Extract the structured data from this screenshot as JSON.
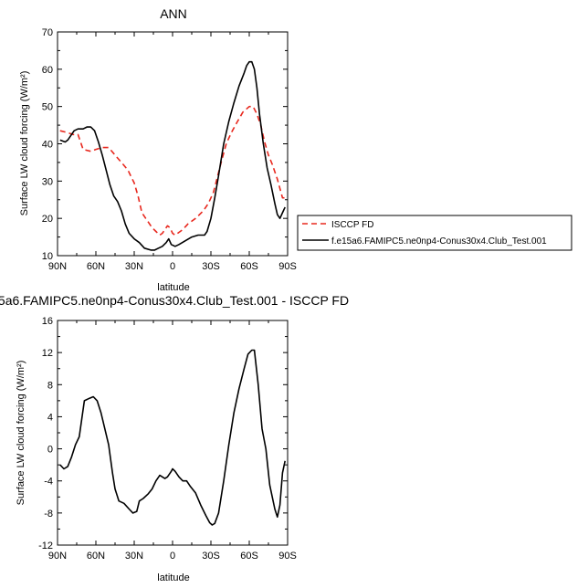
{
  "chart_data": [
    {
      "type": "line",
      "title": "ANN",
      "xlabel": "latitude",
      "ylabel": "Surface LW cloud forcing (W/m²)",
      "xlim": [
        90,
        -90
      ],
      "ylim": [
        10,
        70
      ],
      "x_ticks": [
        90,
        60,
        30,
        0,
        -30,
        -60,
        -90
      ],
      "x_tick_labels": [
        "90N",
        "60N",
        "30N",
        "0",
        "30S",
        "60S",
        "90S"
      ],
      "y_ticks": [
        10,
        20,
        30,
        40,
        50,
        60,
        70
      ],
      "y_tick_labels": [
        "10",
        "20",
        "30",
        "40",
        "50",
        "60",
        "70"
      ],
      "legend_position": "right",
      "series": [
        {
          "name": "ISCCP FD",
          "color": "#e8281e",
          "style": "dashed",
          "points": [
            [
              88,
              43.5
            ],
            [
              82,
              43
            ],
            [
              78,
              42.5
            ],
            [
              74,
              42.5
            ],
            [
              70,
              38.5
            ],
            [
              64,
              38
            ],
            [
              60,
              38.5
            ],
            [
              55,
              39
            ],
            [
              50,
              39
            ],
            [
              45,
              37
            ],
            [
              40,
              35
            ],
            [
              35,
              33
            ],
            [
              30,
              29.5
            ],
            [
              27,
              26
            ],
            [
              24,
              21.5
            ],
            [
              20,
              19.5
            ],
            [
              16,
              17.5
            ],
            [
              13,
              16.5
            ],
            [
              10,
              15.5
            ],
            [
              8,
              16
            ],
            [
              6,
              17
            ],
            [
              4,
              18
            ],
            [
              2,
              17.5
            ],
            [
              0,
              16
            ],
            [
              -2,
              15.5
            ],
            [
              -4,
              16
            ],
            [
              -8,
              17
            ],
            [
              -12,
              18.5
            ],
            [
              -18,
              20
            ],
            [
              -24,
              22
            ],
            [
              -28,
              24
            ],
            [
              -32,
              27
            ],
            [
              -35,
              31
            ],
            [
              -38,
              35
            ],
            [
              -42,
              40
            ],
            [
              -46,
              43
            ],
            [
              -50,
              45.5
            ],
            [
              -55,
              48.5
            ],
            [
              -60,
              50
            ],
            [
              -63,
              50
            ],
            [
              -66,
              48
            ],
            [
              -69,
              45
            ],
            [
              -72,
              40.5
            ],
            [
              -75,
              37
            ],
            [
              -78,
              34.5
            ],
            [
              -82,
              30.5
            ],
            [
              -86,
              25.5
            ],
            [
              -88,
              25.5
            ]
          ]
        },
        {
          "name": "f.e15a6.FAMIPC5.ne0np4-Conus30x4.Club_Test.001",
          "color": "#000000",
          "style": "solid",
          "points": [
            [
              88,
              41
            ],
            [
              84,
              40.5
            ],
            [
              82,
              41
            ],
            [
              80,
              42
            ],
            [
              77,
              43.5
            ],
            [
              74,
              44
            ],
            [
              70,
              44
            ],
            [
              67,
              44.5
            ],
            [
              64,
              44.5
            ],
            [
              61,
              43.5
            ],
            [
              58,
              40.5
            ],
            [
              55,
              37
            ],
            [
              52,
              33
            ],
            [
              49,
              29
            ],
            [
              46,
              26
            ],
            [
              43,
              24.5
            ],
            [
              40,
              22
            ],
            [
              37,
              18.5
            ],
            [
              34,
              16
            ],
            [
              30,
              14.5
            ],
            [
              26,
              13.5
            ],
            [
              22,
              12
            ],
            [
              17,
              11.5
            ],
            [
              14,
              11.5
            ],
            [
              11,
              12
            ],
            [
              8,
              12.5
            ],
            [
              5,
              13.5
            ],
            [
              3,
              14.5
            ],
            [
              1,
              13
            ],
            [
              -2,
              12.5
            ],
            [
              -5,
              13
            ],
            [
              -10,
              14
            ],
            [
              -15,
              15
            ],
            [
              -20,
              15.5
            ],
            [
              -25,
              15.5
            ],
            [
              -27,
              16.5
            ],
            [
              -30,
              20
            ],
            [
              -33,
              25.5
            ],
            [
              -36,
              31.5
            ],
            [
              -40,
              40
            ],
            [
              -44,
              46
            ],
            [
              -48,
              51
            ],
            [
              -52,
              55.5
            ],
            [
              -56,
              59
            ],
            [
              -58,
              61
            ],
            [
              -60,
              62
            ],
            [
              -62,
              62
            ],
            [
              -64,
              60
            ],
            [
              -66,
              55
            ],
            [
              -68,
              48
            ],
            [
              -71,
              40
            ],
            [
              -74,
              33.5
            ],
            [
              -77,
              29
            ],
            [
              -80,
              24
            ],
            [
              -82,
              21
            ],
            [
              -84,
              20
            ],
            [
              -86,
              21.5
            ],
            [
              -88,
              23
            ]
          ]
        }
      ]
    },
    {
      "type": "line",
      "title": "5a6.FAMIPC5.ne0np4-Conus30x4.Club_Test.001 - ISCCP FD",
      "xlabel": "latitude",
      "ylabel": "Surface LW cloud forcing (W/m²)",
      "xlim": [
        90,
        -90
      ],
      "ylim": [
        -12,
        16
      ],
      "x_ticks": [
        90,
        60,
        30,
        0,
        -30,
        -60,
        -90
      ],
      "x_tick_labels": [
        "90N",
        "60N",
        "30N",
        "0",
        "30S",
        "60S",
        "90S"
      ],
      "y_ticks": [
        -12,
        -8,
        -4,
        0,
        4,
        8,
        12,
        16
      ],
      "y_tick_labels": [
        "-12",
        "-8",
        "-4",
        "0",
        "4",
        "8",
        "12",
        "16"
      ],
      "series": [
        {
          "color": "#000000",
          "style": "solid",
          "points": [
            [
              88,
              -2
            ],
            [
              85,
              -2.5
            ],
            [
              82,
              -2.2
            ],
            [
              79,
              -1
            ],
            [
              76,
              0.5
            ],
            [
              73,
              1.5
            ],
            [
              69,
              6
            ],
            [
              65,
              6.3
            ],
            [
              62,
              6.5
            ],
            [
              59,
              6
            ],
            [
              56,
              4.5
            ],
            [
              53,
              2.5
            ],
            [
              50,
              0.5
            ],
            [
              47,
              -3
            ],
            [
              45,
              -5
            ],
            [
              42,
              -6.5
            ],
            [
              38,
              -6.8
            ],
            [
              34,
              -7.5
            ],
            [
              31,
              -8
            ],
            [
              28,
              -7.8
            ],
            [
              26,
              -6.5
            ],
            [
              23,
              -6.2
            ],
            [
              19,
              -5.6
            ],
            [
              16,
              -5
            ],
            [
              13,
              -4
            ],
            [
              10,
              -3.3
            ],
            [
              6,
              -3.7
            ],
            [
              4,
              -3.5
            ],
            [
              1,
              -2.8
            ],
            [
              0,
              -2.5
            ],
            [
              -2,
              -2.8
            ],
            [
              -5,
              -3.5
            ],
            [
              -8,
              -4
            ],
            [
              -11,
              -4
            ],
            [
              -14,
              -4.7
            ],
            [
              -18,
              -5.5
            ],
            [
              -22,
              -7
            ],
            [
              -26,
              -8.3
            ],
            [
              -29,
              -9.2
            ],
            [
              -31,
              -9.5
            ],
            [
              -33,
              -9.3
            ],
            [
              -36,
              -8
            ],
            [
              -40,
              -4
            ],
            [
              -44,
              0.5
            ],
            [
              -48,
              4.5
            ],
            [
              -52,
              7.5
            ],
            [
              -56,
              10
            ],
            [
              -59,
              11.8
            ],
            [
              -62,
              12.3
            ],
            [
              -64,
              12.3
            ],
            [
              -67,
              8
            ],
            [
              -70,
              2.5
            ],
            [
              -73,
              0
            ],
            [
              -76,
              -4.5
            ],
            [
              -78,
              -6
            ],
            [
              -80,
              -7.5
            ],
            [
              -82,
              -8.5
            ],
            [
              -84,
              -7
            ],
            [
              -86,
              -3
            ],
            [
              -88,
              -1.5
            ]
          ]
        }
      ]
    }
  ]
}
